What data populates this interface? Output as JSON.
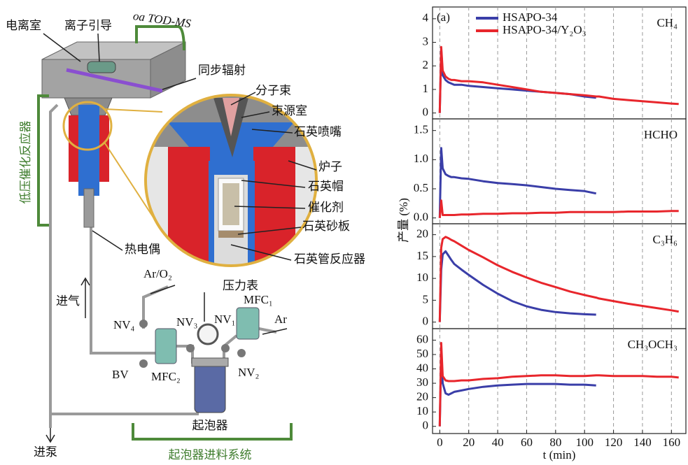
{
  "diagram": {
    "ionization_chamber": "电离室",
    "ion_guide": "离子引导",
    "tof_ms": "oa TOD-MS",
    "synchrotron": "同步辐射",
    "molecular_beam": "分子束",
    "source_chamber": "束源室",
    "quartz_nozzle": "石英喷嘴",
    "furnace": "炉子",
    "quartz_cap": "石英帽",
    "catalyst": "催化剂",
    "quartz_frit": "石英砂板",
    "quartz_reactor": "石英管反应器",
    "thermocouple": "热电偶",
    "reactor": "低压催化反应器",
    "gas_in": "进气",
    "ar_o2": "Ar/O₂",
    "pressure_gauge": "压力表",
    "mfc1": "MFC₁",
    "nv4": "NV₄",
    "nv3": "NV₃",
    "nv1": "NV₁",
    "ar": "Ar",
    "bv": "BV",
    "mfc2": "MFC₂",
    "nv2": "NV₂",
    "bubbler": "起泡器",
    "to_pump": "进泵",
    "bubbler_system": "起泡器进料系统"
  },
  "chart_data": [
    {
      "type": "line",
      "title": "CH₄",
      "panel_label": "(a)",
      "x": [
        0,
        1,
        2,
        4,
        6,
        8,
        10,
        15,
        20,
        30,
        40,
        50,
        60,
        70,
        80,
        90,
        100,
        108,
        110,
        120,
        130,
        140,
        150,
        160,
        165
      ],
      "xlim": [
        -5,
        170
      ],
      "xticks": [
        0,
        20,
        40,
        60,
        80,
        100,
        120,
        140,
        160
      ],
      "ylim": [
        -0.25,
        4.5
      ],
      "yticks": [
        0,
        1,
        2,
        3,
        4
      ],
      "series": [
        {
          "name": "HSAPO-34",
          "color": "#3a3ea8",
          "values": [
            0,
            2.7,
            1.6,
            1.4,
            1.3,
            1.25,
            1.2,
            1.2,
            1.15,
            1.1,
            1.05,
            1.0,
            0.95,
            0.9,
            0.85,
            0.8,
            0.7,
            0.65,
            null,
            null,
            null,
            null,
            null,
            null,
            null
          ]
        },
        {
          "name": "HSAPO-34/Y₂O₃",
          "color": "#e8262c",
          "values": [
            0,
            2.8,
            1.8,
            1.55,
            1.45,
            1.4,
            1.4,
            1.35,
            1.35,
            1.3,
            1.2,
            1.1,
            1.0,
            0.9,
            0.85,
            0.8,
            0.75,
            0.7,
            0.7,
            0.6,
            0.55,
            0.5,
            0.45,
            0.4,
            0.38
          ]
        }
      ]
    },
    {
      "type": "line",
      "title": "HCHO",
      "ylabel": "产量 (%)",
      "x": [
        0,
        1,
        2,
        4,
        6,
        8,
        10,
        15,
        20,
        30,
        40,
        50,
        60,
        70,
        80,
        90,
        100,
        108,
        110,
        120,
        130,
        140,
        150,
        160,
        165
      ],
      "xlim": [
        -5,
        170
      ],
      "xticks": [
        0,
        20,
        40,
        60,
        80,
        100,
        120,
        140,
        160
      ],
      "ylim": [
        -0.1,
        1.7
      ],
      "yticks": [
        {
          "value": 0,
          "label": "0.0"
        },
        0.5,
        {
          "value": 1,
          "label": "1.0"
        },
        1.5
      ],
      "series": [
        {
          "color": "#3a3ea8",
          "values": [
            0,
            1.2,
            0.85,
            0.75,
            0.72,
            0.7,
            0.7,
            0.68,
            0.67,
            0.63,
            0.6,
            0.58,
            0.56,
            0.53,
            0.5,
            0.48,
            0.46,
            0.42,
            null,
            null,
            null,
            null,
            null,
            null,
            null
          ]
        },
        {
          "color": "#e8262c",
          "values": [
            0,
            0.3,
            0.05,
            0.05,
            0.05,
            0.05,
            0.05,
            0.06,
            0.06,
            0.07,
            0.07,
            0.08,
            0.08,
            0.09,
            0.09,
            0.1,
            0.1,
            0.1,
            0.1,
            0.1,
            0.11,
            0.11,
            0.11,
            0.12,
            0.12
          ]
        }
      ]
    },
    {
      "type": "line",
      "title": "C₃H₆",
      "x": [
        0,
        1,
        2,
        4,
        6,
        8,
        10,
        15,
        20,
        30,
        40,
        50,
        60,
        70,
        80,
        90,
        100,
        108,
        110,
        120,
        130,
        140,
        150,
        160,
        165
      ],
      "xlim": [
        -5,
        170
      ],
      "xticks": [
        0,
        20,
        40,
        60,
        80,
        100,
        120,
        140,
        160
      ],
      "ylim": [
        -1.5,
        22.5
      ],
      "yticks": [
        0,
        5,
        10,
        15,
        20
      ],
      "series": [
        {
          "color": "#3a3ea8",
          "values": [
            0,
            12,
            15.5,
            16.2,
            15.2,
            14.2,
            13.3,
            12,
            10.8,
            8.5,
            6.5,
            4.8,
            3.6,
            2.8,
            2.3,
            2.0,
            1.8,
            1.7,
            null,
            null,
            null,
            null,
            null,
            null,
            null
          ]
        },
        {
          "color": "#e8262c",
          "values": [
            0,
            17,
            19,
            19.5,
            19.2,
            18.8,
            18.5,
            17.5,
            16.5,
            14.8,
            13,
            11.5,
            10.2,
            9,
            8,
            7,
            6.2,
            5.6,
            5.4,
            4.8,
            4.2,
            3.7,
            3.2,
            2.7,
            2.4
          ]
        }
      ]
    },
    {
      "type": "line",
      "title": "CH₃OCH₃",
      "xlabel": "t (min)",
      "x": [
        0,
        1,
        2,
        4,
        6,
        8,
        10,
        15,
        20,
        30,
        40,
        50,
        60,
        70,
        80,
        90,
        100,
        108,
        110,
        120,
        130,
        140,
        150,
        160,
        165
      ],
      "xlim": [
        -5,
        170
      ],
      "xticks": [
        0,
        20,
        40,
        60,
        80,
        100,
        120,
        140,
        160
      ],
      "ylim": [
        -5,
        68
      ],
      "yticks": [
        0,
        10,
        20,
        30,
        40,
        50,
        60
      ],
      "series": [
        {
          "color": "#3a3ea8",
          "values": [
            0,
            50,
            30,
            23,
            22,
            23,
            24,
            25,
            26,
            27.5,
            28.5,
            29,
            29.5,
            29.5,
            29.5,
            29,
            29,
            28.5,
            null,
            null,
            null,
            null,
            null,
            null,
            null
          ]
        },
        {
          "color": "#e8262c",
          "values": [
            0,
            58,
            35,
            32,
            31.5,
            31.5,
            31.5,
            32,
            32,
            33,
            33.5,
            34.5,
            35,
            35.5,
            35.5,
            35,
            35,
            35.5,
            35.5,
            35,
            35,
            35,
            34.5,
            34.5,
            34
          ]
        }
      ]
    }
  ]
}
